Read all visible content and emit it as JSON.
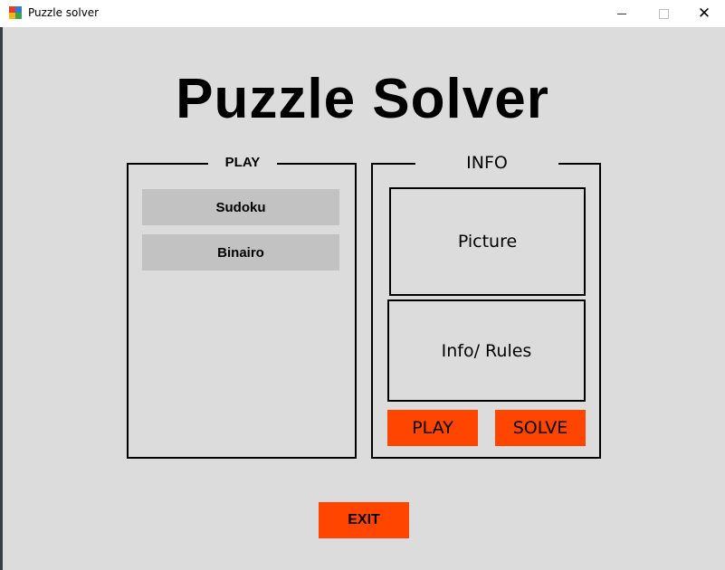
{
  "window": {
    "title": "Puzzle solver",
    "icon": "puzzle-app-icon",
    "controls": {
      "minimize": "minimize-icon",
      "maximize": "maximize-icon",
      "close": "✕"
    }
  },
  "main": {
    "title": "Puzzle Solver"
  },
  "play_panel": {
    "legend": "PLAY",
    "games": [
      {
        "label": "Sudoku"
      },
      {
        "label": "Binairo"
      }
    ]
  },
  "info_panel": {
    "legend": "INFO",
    "picture_label": "Picture",
    "rules_label": "Info/ Rules",
    "play_label": "PLAY",
    "solve_label": "SOLVE"
  },
  "footer": {
    "exit_label": "EXIT"
  },
  "colors": {
    "background": "#dcdcdc",
    "accent": "#ff4500",
    "game_button": "#c2c2c2"
  }
}
